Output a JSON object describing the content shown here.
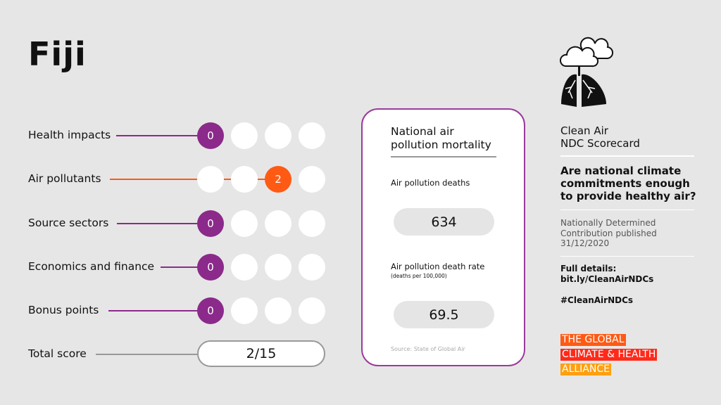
{
  "country": "Fiji",
  "categories": [
    {
      "label": "Health impacts",
      "score": "0",
      "filled": 1,
      "color": "purple"
    },
    {
      "label": "Air pollutants",
      "score": "2",
      "filled": 3,
      "color": "orange"
    },
    {
      "label": "Source sectors",
      "score": "0",
      "filled": 1,
      "color": "purple"
    },
    {
      "label": "Economics and finance",
      "score": "0",
      "filled": 1,
      "color": "purple"
    },
    {
      "label": "Bonus points",
      "score": "0",
      "filled": 1,
      "color": "purple"
    }
  ],
  "total": {
    "label": "Total score",
    "value": "2/15"
  },
  "card": {
    "title": "National air pollution mortality",
    "deaths_label": "Air pollution deaths",
    "deaths_value": "634",
    "rate_label": "Air pollution death rate",
    "rate_sub": "(deaths per 100,000)",
    "rate_value": "69.5",
    "source": "Source: State of Global Air"
  },
  "side": {
    "heading_line1": "Clean Air",
    "heading_line2": "NDC Scorecard",
    "question": "Are national climate commitments enough to provide healthy air?",
    "published": "Nationally Determined Contribution published 31/12/2020",
    "details_label": "Full details:",
    "details_link": "bit.ly/CleanAirNDCs",
    "hashtag": "#CleanAirNDCs",
    "logo": [
      "THE GLOBAL",
      "CLIMATE & HEALTH",
      "ALLIANCE"
    ]
  },
  "colors": {
    "purple": "#8b2a8b",
    "orange": "#ff5a14",
    "red": "#ff2a1a",
    "amber": "#ffa010"
  }
}
